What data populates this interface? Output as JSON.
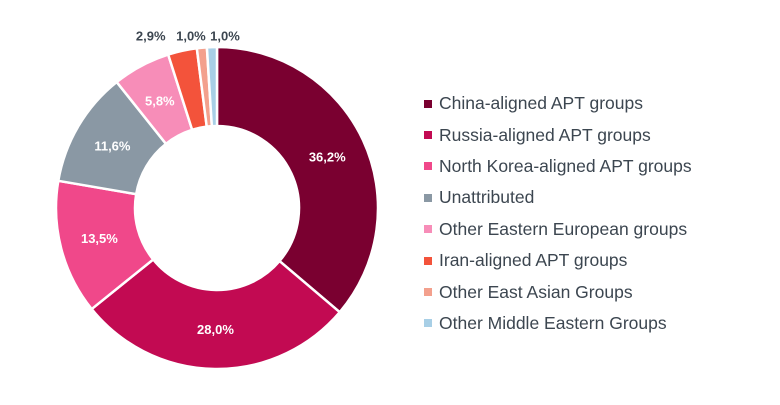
{
  "chart_data": {
    "type": "pie",
    "categories": [
      "China-aligned APT groups",
      "Russia-aligned APT groups",
      "North Korea-aligned APT groups",
      "Unattributed",
      "Other Eastern European groups",
      "Iran-aligned APT groups",
      "Other East Asian Groups",
      "Other Middle Eastern Groups"
    ],
    "values": [
      36.2,
      28.0,
      13.5,
      11.6,
      5.8,
      2.9,
      1.0,
      1.0
    ],
    "value_labels": [
      "36,2%",
      "28,0%",
      "13,5%",
      "11,6%",
      "5,8%",
      "2,9%",
      "1,0%",
      "1,0%"
    ],
    "colors": [
      "#7a0030",
      "#c20a52",
      "#f0488a",
      "#8a98a4",
      "#f78db8",
      "#f3533b",
      "#f3a08d",
      "#a8cfe6"
    ],
    "label_colors": [
      "#ffffff",
      "#ffffff",
      "#ffffff",
      "#ffffff",
      "#ffffff",
      "#3c4650",
      "#3c4650",
      "#3c4650"
    ],
    "legend_position": "right",
    "donut": true
  }
}
